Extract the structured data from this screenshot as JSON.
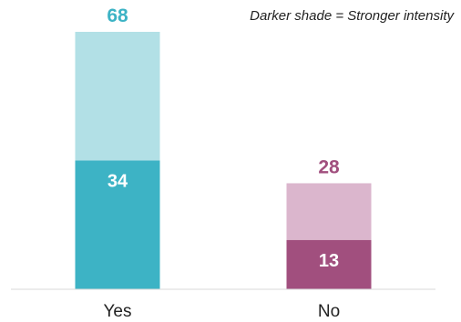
{
  "chart_data": {
    "type": "bar",
    "stacked": true,
    "note": "Darker shade = Stronger intensity",
    "categories": [
      "Yes",
      "No"
    ],
    "totals": [
      68,
      28
    ],
    "strong": [
      34,
      13
    ],
    "colors": {
      "yes_light": "#b2e0e6",
      "yes_dark": "#3db3c5",
      "no_light": "#dbb6cd",
      "no_dark": "#a14f7e",
      "axis": "#d9d9d9"
    },
    "ylim": [
      0,
      68
    ]
  }
}
